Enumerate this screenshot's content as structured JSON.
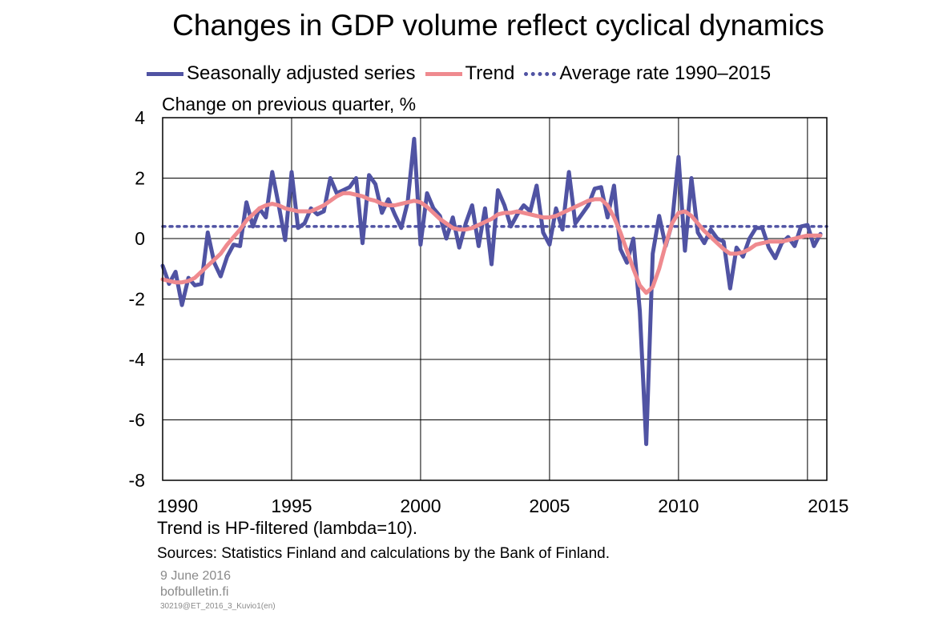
{
  "header": {
    "title": "Changes in GDP volume reflect cyclical dynamics"
  },
  "legend": {
    "items": [
      {
        "label": "Seasonally adjusted series",
        "color": "#5053a3",
        "style": "solid"
      },
      {
        "label": "Trend",
        "color": "#ef8a8f",
        "style": "solid"
      },
      {
        "label": "Average rate 1990–2015",
        "color": "#5053a3",
        "style": "dotted"
      }
    ]
  },
  "chart_data": {
    "type": "line",
    "ylabel": "Change on previous quarter, %",
    "xlim": [
      1990,
      2015.75
    ],
    "ylim": [
      -8,
      4
    ],
    "x_ticks": [
      1990,
      1995,
      2000,
      2005,
      2010,
      2015
    ],
    "y_ticks": [
      4,
      2,
      0,
      -2,
      -4,
      -6,
      -8
    ],
    "grid": true,
    "legend_position": "top",
    "series": [
      {
        "name": "Seasonally adjusted series",
        "color": "#5053a3",
        "x_start": 1990,
        "x_step": 0.25,
        "values": [
          -0.9,
          -1.5,
          -1.1,
          -2.2,
          -1.3,
          -1.55,
          -1.5,
          0.2,
          -0.8,
          -1.25,
          -0.6,
          -0.2,
          -0.25,
          1.2,
          0.4,
          1.0,
          0.7,
          2.2,
          1.1,
          -0.05,
          2.2,
          0.35,
          0.5,
          1.0,
          0.8,
          0.9,
          2.0,
          1.5,
          1.6,
          1.7,
          2.0,
          -0.15,
          2.1,
          1.8,
          0.85,
          1.3,
          0.8,
          0.35,
          1.2,
          3.3,
          -0.2,
          1.5,
          1.0,
          0.75,
          0.0,
          0.7,
          -0.3,
          0.5,
          1.1,
          -0.25,
          1.0,
          -0.85,
          1.6,
          1.1,
          0.4,
          0.8,
          1.1,
          0.9,
          1.75,
          0.2,
          -0.2,
          1.0,
          0.3,
          2.2,
          0.5,
          0.8,
          1.1,
          1.65,
          1.7,
          0.7,
          1.75,
          -0.35,
          -0.8,
          0.0,
          -2.4,
          -6.8,
          -0.5,
          0.75,
          -0.25,
          0.5,
          2.7,
          -0.4,
          2.0,
          0.2,
          -0.15,
          0.3,
          0.0,
          -0.1,
          -1.65,
          -0.3,
          -0.6,
          0.0,
          0.35,
          0.35,
          -0.3,
          -0.65,
          -0.15,
          0.05,
          -0.25,
          0.4,
          0.45,
          -0.25,
          0.15
        ]
      },
      {
        "name": "Trend",
        "color": "#ef8a8f",
        "x_start": 1990,
        "x_step": 0.25,
        "values": [
          -1.35,
          -1.4,
          -1.45,
          -1.45,
          -1.4,
          -1.3,
          -1.1,
          -0.9,
          -0.7,
          -0.5,
          -0.2,
          0.05,
          0.3,
          0.6,
          0.8,
          1.0,
          1.1,
          1.15,
          1.1,
          1.0,
          0.95,
          0.9,
          0.9,
          0.9,
          1.0,
          1.1,
          1.25,
          1.4,
          1.5,
          1.5,
          1.45,
          1.4,
          1.3,
          1.25,
          1.15,
          1.1,
          1.1,
          1.15,
          1.2,
          1.25,
          1.2,
          1.05,
          0.85,
          0.65,
          0.5,
          0.35,
          0.3,
          0.3,
          0.35,
          0.45,
          0.55,
          0.65,
          0.8,
          0.85,
          0.85,
          0.9,
          0.85,
          0.8,
          0.75,
          0.7,
          0.7,
          0.75,
          0.85,
          0.95,
          1.05,
          1.15,
          1.25,
          1.3,
          1.3,
          1.1,
          0.7,
          0.2,
          -0.4,
          -1.0,
          -1.55,
          -1.8,
          -1.6,
          -1.0,
          -0.2,
          0.5,
          0.85,
          0.9,
          0.75,
          0.5,
          0.25,
          0.05,
          -0.15,
          -0.35,
          -0.5,
          -0.5,
          -0.45,
          -0.35,
          -0.2,
          -0.15,
          -0.1,
          -0.1,
          -0.1,
          -0.05,
          0.0,
          0.05,
          0.1,
          0.1,
          0.1
        ]
      },
      {
        "name": "Average rate 1990–2015",
        "color": "#5053a3",
        "style": "dotted",
        "x": [
          1990,
          2015.75
        ],
        "values": [
          0.4,
          0.4
        ]
      }
    ]
  },
  "notes": {
    "footnote": "Trend is HP-filtered (lambda=10).",
    "sources": "Sources: Statistics Finland and calculations by the Bank of Finland."
  },
  "meta": {
    "date": "9 June 2016",
    "site": "bofbulletin.fi",
    "code": "30219@ET_2016_3_Kuvio1(en)"
  }
}
